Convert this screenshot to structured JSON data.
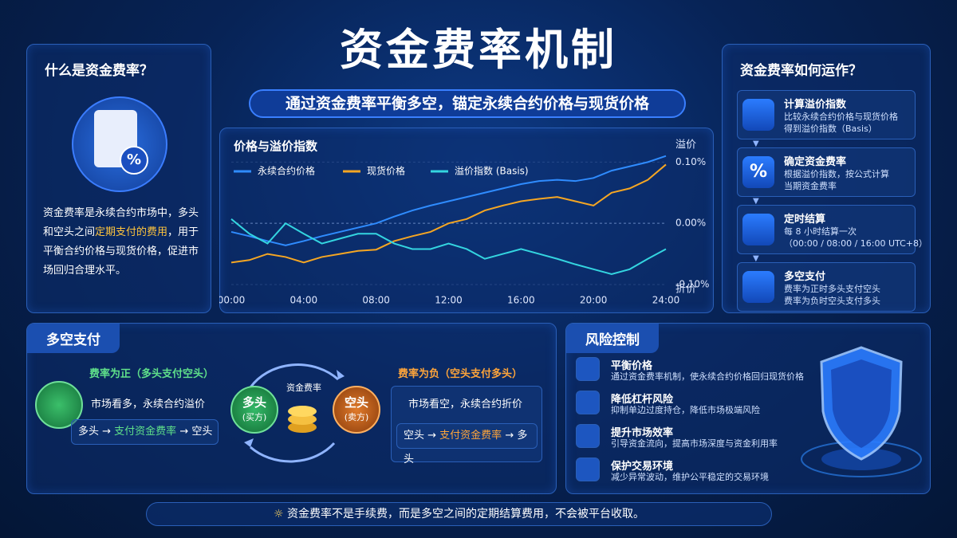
{
  "title": "资金费率机制",
  "subtitle": "通过资金费率平衡多空，锚定永续合约价格与现货价格",
  "what_is": {
    "title": "什么是资金费率？",
    "icon": "%",
    "text_before": "资金费率是永续合约市场中，多头和空头之间",
    "highlight": "定期支付的费用",
    "text_after": "，用于平衡合约价格与现货价格，促进市场回归合理水平。"
  },
  "chart_data": {
    "type": "line",
    "title": "价格与溢价指数",
    "y_top_label": "溢价",
    "y_bottom_label": "折价",
    "x": [
      0,
      1,
      2,
      3,
      4,
      5,
      6,
      7,
      8,
      9,
      10,
      11,
      12,
      13,
      14,
      15,
      16,
      17,
      18,
      19,
      20,
      21,
      22,
      23,
      24
    ],
    "xlim": [
      0,
      24
    ],
    "xticks": [
      {
        "value": 0,
        "label": "00:00"
      },
      {
        "value": 4,
        "label": "04:00"
      },
      {
        "value": 8,
        "label": "08:00"
      },
      {
        "value": 12,
        "label": "12:00"
      },
      {
        "value": 16,
        "label": "16:00"
      },
      {
        "value": 20,
        "label": "20:00"
      },
      {
        "value": 24,
        "label": "24:00"
      }
    ],
    "ylim": [
      -0.1,
      0.12
    ],
    "yticks": [
      {
        "value": 0.1,
        "label": "0.10%"
      },
      {
        "value": 0,
        "label": "0.00%"
      },
      {
        "value": -0.1,
        "label": "-0.10%"
      }
    ],
    "grid": true,
    "series": [
      {
        "name": "永续合约价格",
        "color": "#2f8cff",
        "values": [
          -0.014,
          -0.021,
          -0.029,
          -0.036,
          -0.029,
          -0.021,
          -0.014,
          -0.007,
          0,
          0.011,
          0.021,
          0.029,
          0.036,
          0.043,
          0.05,
          0.057,
          0.064,
          0.069,
          0.071,
          0.069,
          0.074,
          0.086,
          0.093,
          0.1,
          0.11
        ]
      },
      {
        "name": "现货价格",
        "color": "#f5a623",
        "values": [
          -0.064,
          -0.06,
          -0.05,
          -0.055,
          -0.064,
          -0.055,
          -0.05,
          -0.045,
          -0.043,
          -0.029,
          -0.021,
          -0.014,
          0,
          0.007,
          0.021,
          0.029,
          0.036,
          0.04,
          0.043,
          0.036,
          0.029,
          0.05,
          0.057,
          0.071,
          0.096
        ]
      },
      {
        "name": "溢价指数 (Basis)",
        "color": "#34d5e0",
        "values": [
          0.007,
          -0.017,
          -0.033,
          0,
          -0.017,
          -0.033,
          -0.025,
          -0.017,
          -0.017,
          -0.033,
          -0.042,
          -0.042,
          -0.033,
          -0.042,
          -0.058,
          -0.05,
          -0.042,
          -0.05,
          -0.058,
          -0.067,
          -0.075,
          -0.083,
          -0.075,
          -0.058,
          -0.042
        ]
      }
    ]
  },
  "how_it_works": {
    "title": "资金费率如何运作？",
    "steps": [
      {
        "title": "计算溢价指数",
        "desc": [
          "比较永续合约价格与现货价格",
          "得到溢价指数（Basis）"
        ]
      },
      {
        "title": "确定资金费率",
        "icon": "%",
        "desc": [
          "根据溢价指数，按公式计算",
          "当期资金费率"
        ]
      },
      {
        "title": "定时结算",
        "desc": [
          "每 8 小时结算一次",
          "（00:00 / 08:00 / 16:00 UTC+8）"
        ]
      },
      {
        "title": "多空支付",
        "desc": [
          "费率为正时多头支付空头",
          "费率为负时空头支付多头"
        ]
      }
    ]
  },
  "payment": {
    "title": "多空支付",
    "positive": {
      "title": "费率为正（多头支付空头）",
      "text": "市场看多，永续合约溢价",
      "flow": [
        "多头 → ",
        "支付资金费率",
        " → 空头"
      ]
    },
    "center": {
      "label": "资金费率",
      "long": "多头",
      "long_sub": "(买方)",
      "short": "空头",
      "short_sub": "(卖方)"
    },
    "negative": {
      "title": "费率为负（空头支付多头）",
      "text": "市场看空，永续合约折价",
      "flow": [
        "空头 → ",
        "支付资金费率",
        " → 多头"
      ]
    }
  },
  "risk": {
    "title": "风险控制",
    "items": [
      {
        "title": "平衡价格",
        "desc": "通过资金费率机制，使永续合约价格回归现货价格"
      },
      {
        "title": "降低杠杆风险",
        "desc": "抑制单边过度持仓，降低市场极端风险"
      },
      {
        "title": "提升市场效率",
        "desc": "引导资金流向，提高市场深度与资金利用率"
      },
      {
        "title": "保护交易环境",
        "desc": "减少异常波动，维护公平稳定的交易环境"
      }
    ]
  },
  "footer": "资金费率不是手续费，而是多空之间的定期结算费用，不会被平台收取。"
}
